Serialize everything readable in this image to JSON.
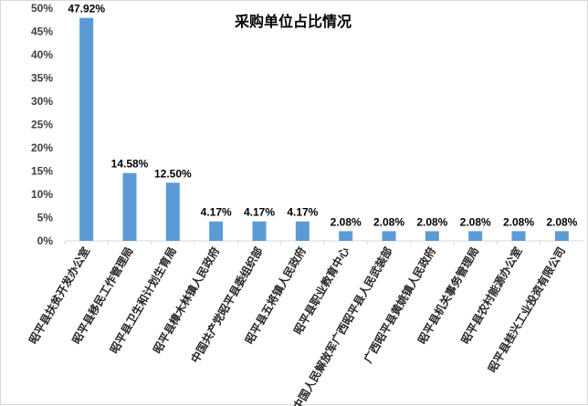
{
  "chart_data": {
    "type": "bar",
    "title": "采购单位占比情况",
    "xlabel": "",
    "ylabel": "",
    "ylim": [
      0,
      50
    ],
    "yticks": [
      0,
      5,
      10,
      15,
      20,
      25,
      30,
      35,
      40,
      45,
      50
    ],
    "ytick_labels": [
      "0%",
      "5%",
      "10%",
      "15%",
      "20%",
      "25%",
      "30%",
      "35%",
      "40%",
      "45%",
      "50%"
    ],
    "categories": [
      "昭平县扶贫开发办公室",
      "昭平县移民工作管理局",
      "昭平县卫生和计划生育局",
      "昭平县樟木林镇人民政府",
      "中国共产党昭平县委组织部",
      "昭平县五将镇人民政府",
      "昭平县职业教育中心",
      "中国人民解放军广西昭平县人民武装部",
      "广西昭平县黄姚镇人民政府",
      "昭平县机关事务管理局",
      "昭平县农村能源办公室",
      "昭平县桂兴工业投资有限公司"
    ],
    "values": [
      47.92,
      14.58,
      12.5,
      4.17,
      4.17,
      4.17,
      2.08,
      2.08,
      2.08,
      2.08,
      2.08,
      2.08
    ],
    "data_labels": [
      "47.92%",
      "14.58%",
      "12.50%",
      "4.17%",
      "4.17%",
      "4.17%",
      "2.08%",
      "2.08%",
      "2.08%",
      "2.08%",
      "2.08%",
      "2.08%"
    ],
    "colors": {
      "bar": "#5b9bd5",
      "axis": "#d9d9d9"
    },
    "grid": false,
    "legend": "none"
  }
}
